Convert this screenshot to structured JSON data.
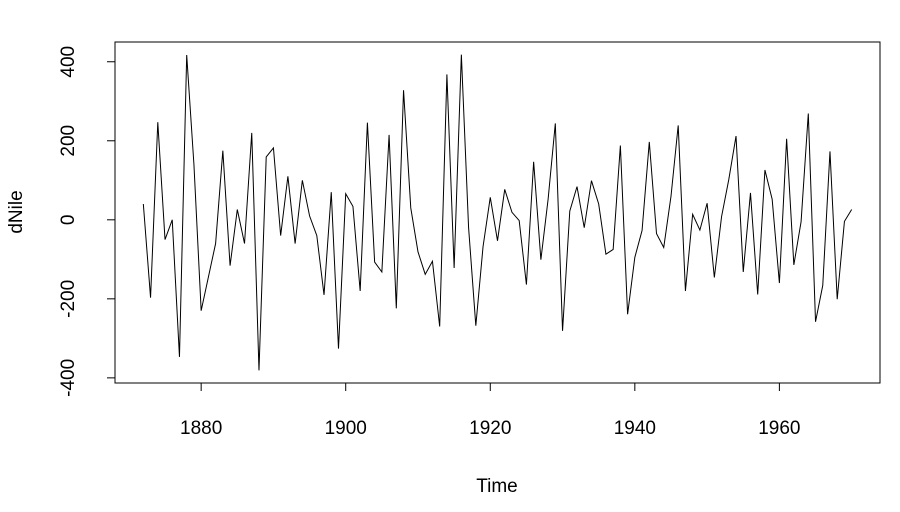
{
  "chart_data": {
    "type": "line",
    "xlabel": "Time",
    "ylabel": "dNile",
    "x": [
      1872,
      1873,
      1874,
      1875,
      1876,
      1877,
      1878,
      1879,
      1880,
      1881,
      1882,
      1883,
      1884,
      1885,
      1886,
      1887,
      1888,
      1889,
      1890,
      1891,
      1892,
      1893,
      1894,
      1895,
      1896,
      1897,
      1898,
      1899,
      1900,
      1901,
      1902,
      1903,
      1904,
      1905,
      1906,
      1907,
      1908,
      1909,
      1910,
      1911,
      1912,
      1913,
      1914,
      1915,
      1916,
      1917,
      1918,
      1919,
      1920,
      1921,
      1922,
      1923,
      1924,
      1925,
      1926,
      1927,
      1928,
      1929,
      1930,
      1931,
      1932,
      1933,
      1934,
      1935,
      1936,
      1937,
      1938,
      1939,
      1940,
      1941,
      1942,
      1943,
      1944,
      1945,
      1946,
      1947,
      1948,
      1949,
      1950,
      1951,
      1952,
      1953,
      1954,
      1955,
      1956,
      1957,
      1958,
      1959,
      1960,
      1961,
      1962,
      1963,
      1964,
      1965,
      1966,
      1967,
      1968,
      1969,
      1970
    ],
    "values": [
      40,
      -197,
      247,
      -50,
      0,
      -347,
      417,
      140,
      -230,
      -145,
      -60,
      175,
      -116,
      26,
      -60,
      220,
      -381,
      159,
      182,
      -40,
      110,
      -60,
      100,
      10,
      -40,
      -190,
      70,
      -326,
      66,
      34,
      -180,
      246,
      -107,
      -132,
      215,
      -224,
      328,
      30,
      -81,
      -138,
      -105,
      -270,
      368,
      -122,
      418,
      -20,
      -268,
      -68,
      57,
      -53,
      77,
      19,
      -2,
      -164,
      147,
      -101,
      52,
      244,
      -281,
      22,
      84,
      -20,
      99,
      40,
      -87,
      -75,
      188,
      -239,
      -95,
      -27,
      197,
      -35,
      -70,
      59,
      239,
      -180,
      14,
      -26,
      42,
      -146,
      8,
      102,
      212,
      -132,
      68,
      -189,
      126,
      52,
      -160,
      205,
      -114,
      -5,
      269,
      -258,
      -166,
      173,
      -201,
      -4,
      26
    ],
    "color": "#000000",
    "xlim": [
      1868.08,
      1973.92
    ],
    "xticks": [
      1880,
      1900,
      1920,
      1940,
      1960
    ],
    "ylim": [
      -413,
      450
    ],
    "yticks": [
      -400,
      -200,
      0,
      200,
      400
    ]
  }
}
